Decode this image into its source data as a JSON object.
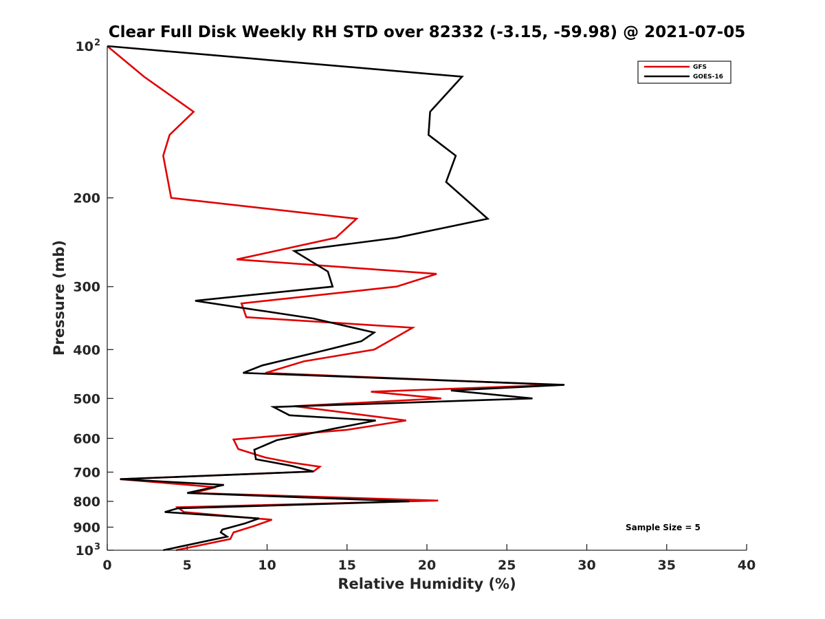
{
  "chart_data": {
    "type": "line",
    "title": "Clear Full Disk Weekly RH STD over 82332 (-3.15, -59.98) @ 2021-07-05",
    "xlabel": "Relative Humidity (%)",
    "ylabel": "Pressure (mb)",
    "xlim": [
      0,
      40
    ],
    "ylim": [
      100,
      1000
    ],
    "yscale": "log",
    "y_reversed": true,
    "x_ticks": [
      "0",
      "5",
      "10",
      "15",
      "20",
      "25",
      "30",
      "35",
      "40"
    ],
    "y_ticks": [
      {
        "value": 100,
        "label": "10",
        "exp": "2"
      },
      {
        "value": 200,
        "label": "200",
        "exp": ""
      },
      {
        "value": 300,
        "label": "300",
        "exp": ""
      },
      {
        "value": 400,
        "label": "400",
        "exp": ""
      },
      {
        "value": 500,
        "label": "500",
        "exp": ""
      },
      {
        "value": 600,
        "label": "600",
        "exp": ""
      },
      {
        "value": 700,
        "label": "700",
        "exp": ""
      },
      {
        "value": 800,
        "label": "800",
        "exp": ""
      },
      {
        "value": 900,
        "label": "900",
        "exp": ""
      },
      {
        "value": 1000,
        "label": "10",
        "exp": "3"
      }
    ],
    "grid": false,
    "legend_position": "top-right",
    "annotation": "Sample Size = 5",
    "series": [
      {
        "name": "GFS",
        "color": "#e00000",
        "points": [
          [
            0.0,
            100
          ],
          [
            2.3,
            115
          ],
          [
            5.4,
            135
          ],
          [
            3.9,
            150
          ],
          [
            3.5,
            165
          ],
          [
            4.0,
            200
          ],
          [
            15.6,
            220
          ],
          [
            14.3,
            240
          ],
          [
            8.1,
            265
          ],
          [
            20.6,
            283
          ],
          [
            18.1,
            300
          ],
          [
            8.4,
            324
          ],
          [
            8.7,
            345
          ],
          [
            19.1,
            362
          ],
          [
            17.8,
            382
          ],
          [
            16.7,
            400
          ],
          [
            12.3,
            422
          ],
          [
            9.9,
            445
          ],
          [
            28.1,
            470
          ],
          [
            16.5,
            485
          ],
          [
            20.9,
            500
          ],
          [
            11.7,
            518
          ],
          [
            15.2,
            535
          ],
          [
            18.7,
            553
          ],
          [
            15.0,
            577
          ],
          [
            7.9,
            603
          ],
          [
            8.2,
            630
          ],
          [
            9.9,
            655
          ],
          [
            11.5,
            670
          ],
          [
            13.3,
            683
          ],
          [
            12.9,
            698
          ],
          [
            0.8,
            723
          ],
          [
            6.8,
            750
          ],
          [
            5.4,
            770
          ],
          [
            20.7,
            797
          ],
          [
            4.4,
            822
          ],
          [
            4.8,
            840
          ],
          [
            10.3,
            870
          ],
          [
            9.1,
            897
          ],
          [
            7.9,
            922
          ],
          [
            7.7,
            950
          ],
          [
            4.3,
            1000
          ]
        ]
      },
      {
        "name": "GOES-16",
        "color": "#000000",
        "points": [
          [
            0.0,
            100
          ],
          [
            22.2,
            115
          ],
          [
            20.2,
            135
          ],
          [
            20.1,
            150
          ],
          [
            21.8,
            165
          ],
          [
            21.2,
            186
          ],
          [
            23.8,
            220
          ],
          [
            18.1,
            240
          ],
          [
            11.7,
            255
          ],
          [
            13.8,
            280
          ],
          [
            14.1,
            300
          ],
          [
            5.5,
            320
          ],
          [
            12.9,
            347
          ],
          [
            16.7,
            370
          ],
          [
            15.9,
            385
          ],
          [
            13.8,
            400
          ],
          [
            9.7,
            430
          ],
          [
            8.5,
            445
          ],
          [
            28.6,
            470
          ],
          [
            21.5,
            482
          ],
          [
            26.6,
            500
          ],
          [
            10.4,
            520
          ],
          [
            11.4,
            540
          ],
          [
            16.8,
            553
          ],
          [
            14.3,
            573
          ],
          [
            10.6,
            605
          ],
          [
            9.2,
            632
          ],
          [
            9.3,
            660
          ],
          [
            11.5,
            680
          ],
          [
            12.9,
            698
          ],
          [
            0.8,
            723
          ],
          [
            7.3,
            742
          ],
          [
            5.0,
            770
          ],
          [
            18.9,
            800
          ],
          [
            4.4,
            826
          ],
          [
            3.6,
            840
          ],
          [
            9.5,
            865
          ],
          [
            8.6,
            885
          ],
          [
            7.2,
            910
          ],
          [
            7.1,
            922
          ],
          [
            7.5,
            940
          ],
          [
            3.5,
            1000
          ]
        ]
      }
    ]
  }
}
